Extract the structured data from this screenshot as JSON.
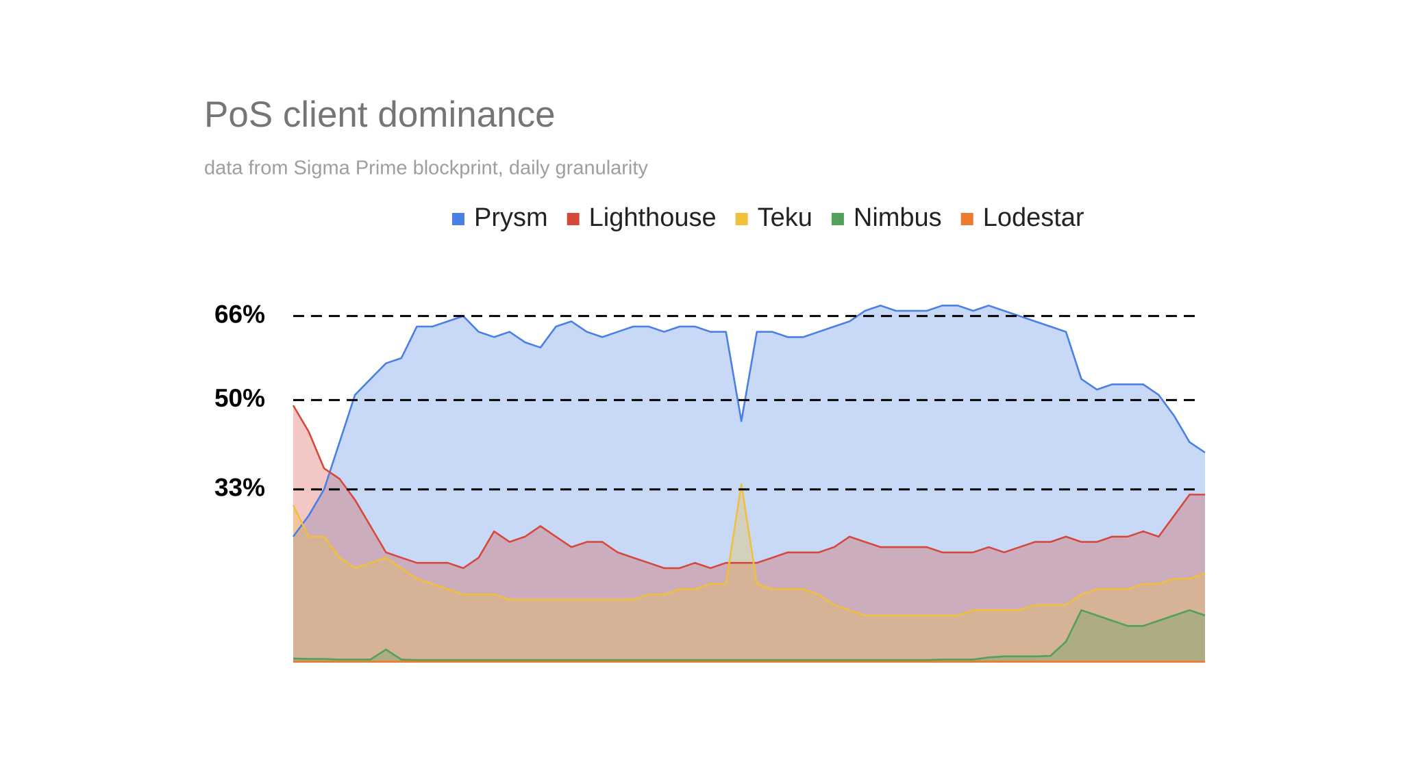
{
  "chart_data": {
    "type": "area",
    "title": "PoS client dominance",
    "subtitle": "data from Sigma Prime blockprint, daily granularity",
    "categories": [
      null,
      null,
      null,
      null,
      null,
      null,
      null,
      null,
      null,
      null,
      null,
      null,
      null,
      null,
      null,
      null,
      null,
      null,
      null,
      null,
      null,
      null,
      null,
      null,
      null,
      null,
      null,
      null,
      null,
      null,
      null,
      null,
      null,
      null,
      null,
      null,
      null,
      null,
      null,
      null,
      null,
      null,
      null,
      null,
      null,
      null,
      null,
      null,
      null,
      null,
      null,
      null,
      null,
      null,
      null,
      null,
      null,
      null,
      null,
      null
    ],
    "series": [
      {
        "name": "Prysm",
        "color": "#4a7fe6",
        "values": [
          24,
          28,
          33,
          42,
          51,
          54,
          57,
          58,
          64,
          64,
          65,
          66,
          63,
          62,
          63,
          61,
          60,
          64,
          65,
          63,
          62,
          63,
          64,
          64,
          63,
          64,
          64,
          63,
          63,
          46,
          63,
          63,
          62,
          62,
          63,
          64,
          65,
          67,
          68,
          67,
          67,
          67,
          68,
          68,
          67,
          68,
          67,
          66,
          65,
          64,
          63,
          54,
          52,
          53,
          53,
          53,
          51,
          47,
          42,
          40
        ]
      },
      {
        "name": "Lighthouse",
        "color": "#d6483c",
        "values": [
          49,
          44,
          37,
          35,
          31,
          26,
          21,
          20,
          19,
          19,
          19,
          18,
          20,
          25,
          23,
          24,
          26,
          24,
          22,
          23,
          23,
          21,
          20,
          19,
          18,
          18,
          19,
          18,
          19,
          19,
          19,
          20,
          21,
          21,
          21,
          22,
          24,
          23,
          22,
          22,
          22,
          22,
          21,
          21,
          21,
          22,
          21,
          22,
          23,
          23,
          24,
          23,
          23,
          24,
          24,
          25,
          24,
          28,
          32,
          32
        ]
      },
      {
        "name": "Teku",
        "color": "#f0bf3c",
        "values": [
          30,
          24,
          24,
          20,
          18,
          19,
          20,
          18,
          16,
          15,
          14,
          13,
          13,
          13,
          12,
          12,
          12,
          12,
          12,
          12,
          12,
          12,
          12,
          13,
          13,
          14,
          14,
          15,
          15,
          34,
          15,
          14,
          14,
          14,
          13,
          11,
          10,
          9,
          9,
          9,
          9,
          9,
          9,
          9,
          10,
          10,
          10,
          10,
          11,
          11,
          11,
          13,
          14,
          14,
          14,
          15,
          15,
          16,
          16,
          17
        ]
      },
      {
        "name": "Nimbus",
        "color": "#52a05a",
        "values": [
          0.8,
          0.7,
          0.7,
          0.6,
          0.6,
          0.6,
          2.5,
          0.6,
          0.5,
          0.5,
          0.5,
          0.5,
          0.5,
          0.5,
          0.5,
          0.5,
          0.5,
          0.5,
          0.5,
          0.5,
          0.5,
          0.5,
          0.5,
          0.5,
          0.5,
          0.5,
          0.5,
          0.5,
          0.5,
          0.5,
          0.5,
          0.5,
          0.5,
          0.5,
          0.5,
          0.5,
          0.5,
          0.5,
          0.5,
          0.5,
          0.5,
          0.5,
          0.6,
          0.6,
          0.6,
          1,
          1.2,
          1.2,
          1.2,
          1.3,
          4,
          10,
          9,
          8,
          7,
          7,
          8,
          9,
          10,
          9
        ]
      },
      {
        "name": "Lodestar",
        "color": "#ee7a30",
        "values": [
          0.2,
          0.2,
          0.2,
          0.2,
          0.2,
          0.2,
          0.2,
          0.2,
          0.2,
          0.2,
          0.2,
          0.2,
          0.2,
          0.2,
          0.2,
          0.2,
          0.2,
          0.2,
          0.2,
          0.2,
          0.2,
          0.2,
          0.2,
          0.2,
          0.2,
          0.2,
          0.2,
          0.2,
          0.2,
          0.2,
          0.2,
          0.2,
          0.2,
          0.2,
          0.2,
          0.2,
          0.2,
          0.2,
          0.2,
          0.2,
          0.2,
          0.2,
          0.2,
          0.2,
          0.2,
          0.2,
          0.2,
          0.2,
          0.2,
          0.2,
          0.2,
          0.2,
          0.2,
          0.2,
          0.2,
          0.2,
          0.2,
          0.2,
          0.2,
          0.2
        ]
      }
    ],
    "ylim": [
      0,
      70
    ],
    "yticks": [
      {
        "value": 33,
        "label": "33%"
      },
      {
        "value": 50,
        "label": "50%"
      },
      {
        "value": 66,
        "label": "66%"
      }
    ],
    "grid": true,
    "legend": "top"
  }
}
